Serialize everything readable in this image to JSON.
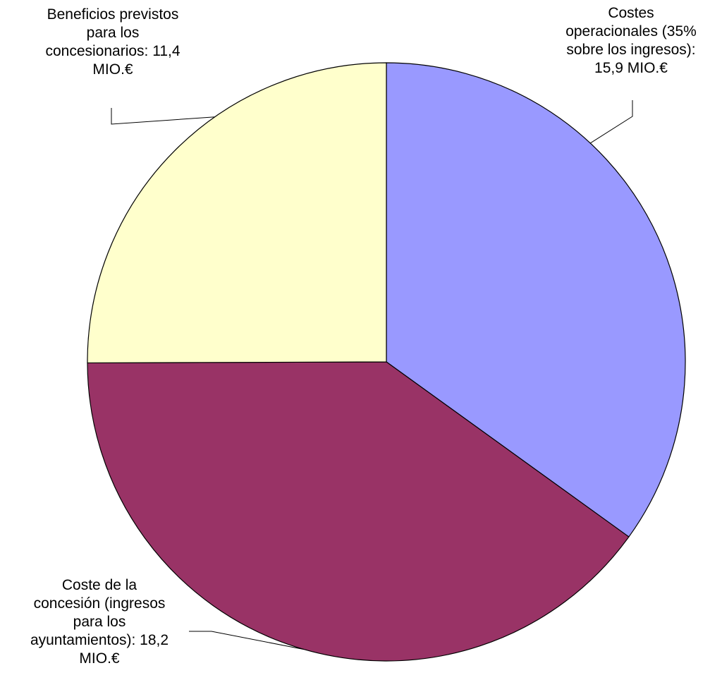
{
  "chart_data": {
    "type": "pie",
    "title": "",
    "start_angle_deg": 0,
    "direction": "clockwise",
    "slices": [
      {
        "label": "Costes operacionales (35% sobre los ingresos)",
        "value": 15.9,
        "unit": "MIO.€",
        "color": "#9999FF",
        "label_lines": [
          "Costes",
          "operacionales (35%",
          "sobre los ingresos):",
          "15,9 MIO.€"
        ]
      },
      {
        "label": "Coste de la concesión (ingresos para los ayuntamientos)",
        "value": 18.2,
        "unit": "MIO.€",
        "color": "#993366",
        "label_lines": [
          "Coste de la",
          "concesión (ingresos",
          "para los",
          "ayuntamientos): 18,2",
          "MIO.€"
        ]
      },
      {
        "label": "Beneficios previstos para los concesionarios",
        "value": 11.4,
        "unit": "MIO.€",
        "color": "#FFFFCC",
        "label_lines": [
          "Beneficios previstos",
          "para los",
          "concesionarios: 11,4",
          "MIO.€"
        ]
      }
    ],
    "slice_border_color": "#000000",
    "leader_line_color": "#000000"
  }
}
